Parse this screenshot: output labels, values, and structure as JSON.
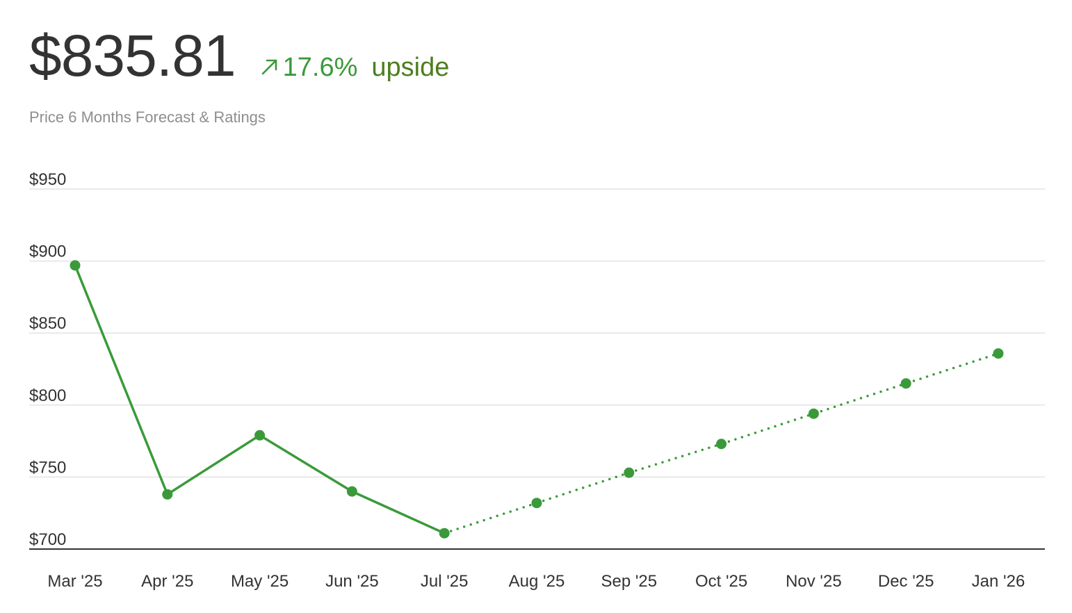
{
  "header": {
    "price": "$835.81",
    "change_pct": "17.6%",
    "change_label": "upside",
    "subtitle": "Price 6 Months Forecast & Ratings",
    "arrow_icon": "arrow-up-right-icon"
  },
  "colors": {
    "line": "#3a9a3a",
    "upside_text": "#4c7e1e",
    "grid": "#e3e3e3",
    "axis": "#333333"
  },
  "chart_data": {
    "type": "line",
    "title": "",
    "xlabel": "",
    "ylabel": "",
    "categories": [
      "Mar '25",
      "Apr '25",
      "May '25",
      "Jun '25",
      "Jul '25",
      "Aug '25",
      "Sep '25",
      "Oct '25",
      "Nov '25",
      "Dec '25",
      "Jan '26"
    ],
    "ylim": [
      700,
      950
    ],
    "yticks": [
      700,
      750,
      800,
      850,
      900,
      950
    ],
    "ytick_labels": [
      "$700",
      "$750",
      "$800",
      "$850",
      "$900",
      "$950"
    ],
    "grid": true,
    "series": [
      {
        "style": "solid",
        "x": [
          "Mar '25",
          "Apr '25",
          "May '25",
          "Jun '25",
          "Jul '25"
        ],
        "values": [
          897,
          738,
          779,
          740,
          711
        ]
      },
      {
        "style": "dotted",
        "x": [
          "Jul '25",
          "Aug '25",
          "Sep '25",
          "Oct '25",
          "Nov '25",
          "Dec '25",
          "Jan '26"
        ],
        "values": [
          711,
          732,
          753,
          773,
          794,
          815,
          835.81
        ]
      }
    ]
  }
}
